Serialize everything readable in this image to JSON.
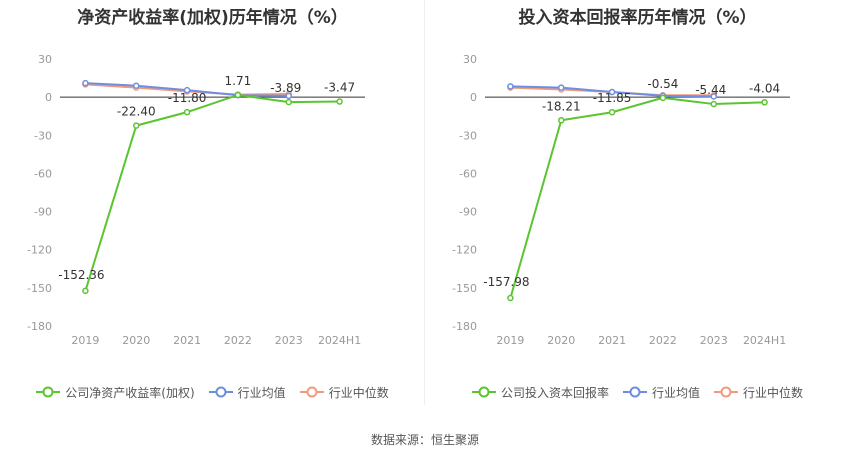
{
  "source": "数据来源：恒生聚源",
  "legend_shared": [
    "行业均值",
    "行业中位数"
  ],
  "colors": {
    "company": "#5ac52e",
    "industry_avg": "#6e8fe0",
    "industry_median": "#f09a7e"
  },
  "chart_data": [
    {
      "type": "line",
      "title": "净资产收益率(加权)历年情况（%）",
      "categories": [
        "2019",
        "2020",
        "2021",
        "2022",
        "2023",
        "2024H1"
      ],
      "ylim": [
        -180,
        30
      ],
      "yticks": [
        30,
        0,
        -30,
        -60,
        -90,
        -120,
        -150,
        -180
      ],
      "grid": false,
      "legend_position": "bottom",
      "series": [
        {
          "name": "公司净资产收益率(加权)",
          "color": "#5ac52e",
          "values": [
            -152.36,
            -22.4,
            -11.8,
            1.71,
            -3.89,
            -3.47
          ],
          "labels": [
            "-152.36",
            "-22.40",
            "-11.80",
            "1.71",
            "-3.89",
            "-3.47"
          ]
        },
        {
          "name": "行业均值",
          "color": "#6e8fe0",
          "values": [
            11.0,
            9.0,
            5.5,
            1.5,
            1.0,
            null
          ]
        },
        {
          "name": "行业中位数",
          "color": "#f09a7e",
          "values": [
            10.0,
            7.5,
            4.5,
            2.0,
            2.5,
            null
          ]
        }
      ]
    },
    {
      "type": "line",
      "title": "投入资本回报率历年情况（%）",
      "categories": [
        "2019",
        "2020",
        "2021",
        "2022",
        "2023",
        "2024H1"
      ],
      "ylim": [
        -180,
        30
      ],
      "yticks": [
        30,
        0,
        -30,
        -60,
        -90,
        -120,
        -150,
        -180
      ],
      "grid": false,
      "legend_position": "bottom",
      "series": [
        {
          "name": "公司投入资本回报率",
          "color": "#5ac52e",
          "values": [
            -157.98,
            -18.21,
            -11.85,
            -0.54,
            -5.44,
            -4.04
          ],
          "labels": [
            "-157.98",
            "-18.21",
            "-11.85",
            "-0.54",
            "-5.44",
            "-4.04"
          ]
        },
        {
          "name": "行业均值",
          "color": "#6e8fe0",
          "values": [
            8.5,
            7.5,
            4.0,
            1.0,
            0.5,
            null
          ]
        },
        {
          "name": "行业中位数",
          "color": "#f09a7e",
          "values": [
            7.5,
            6.0,
            4.0,
            1.5,
            1.5,
            null
          ]
        }
      ]
    }
  ]
}
